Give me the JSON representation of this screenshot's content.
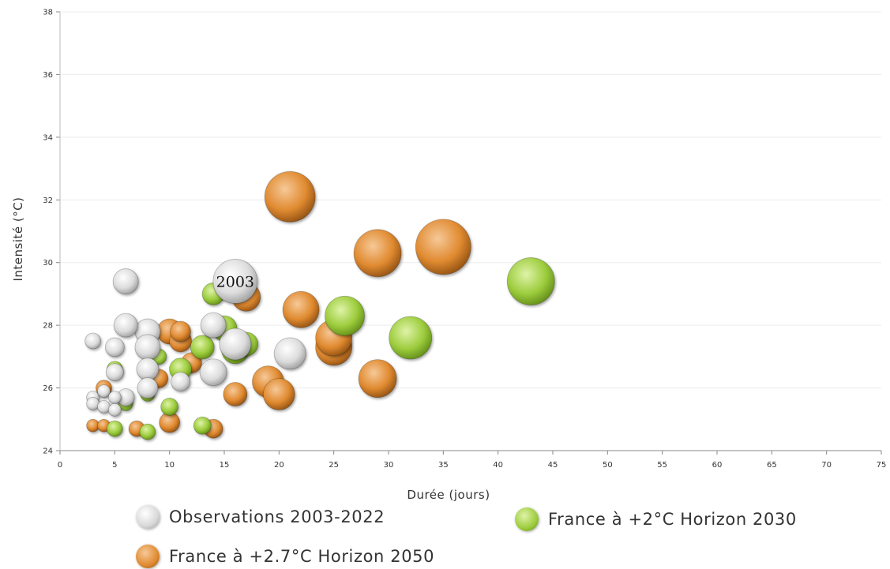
{
  "chart_data": {
    "type": "scatter",
    "xlabel": "Durée  (jours)",
    "ylabel": "Intensité  (°C)",
    "xlim": [
      0,
      75
    ],
    "ylim": [
      24,
      38
    ],
    "xticks": [
      0,
      5,
      10,
      15,
      20,
      25,
      30,
      35,
      40,
      45,
      50,
      55,
      60,
      65,
      70,
      75
    ],
    "yticks": [
      24,
      26,
      28,
      30,
      32,
      34,
      36,
      38
    ],
    "grid": "horizontal",
    "legend_position": "bottom",
    "annotation": {
      "text": "2003",
      "x": 16,
      "y": 29.4
    },
    "series": [
      {
        "name": "Observations 2003-2022",
        "color": "#dcdcdc",
        "points": [
          {
            "x": 3,
            "y": 27.5
          },
          {
            "x": 3,
            "y": 25.7
          },
          {
            "x": 3,
            "y": 25.5
          },
          {
            "x": 4,
            "y": 25.9
          },
          {
            "x": 4,
            "y": 25.4
          },
          {
            "x": 5,
            "y": 27.3
          },
          {
            "x": 5,
            "y": 26.5
          },
          {
            "x": 5,
            "y": 25.7
          },
          {
            "x": 5,
            "y": 25.3
          },
          {
            "x": 6,
            "y": 29.4
          },
          {
            "x": 6,
            "y": 25.7
          },
          {
            "x": 6,
            "y": 28.0
          },
          {
            "x": 8,
            "y": 27.8
          },
          {
            "x": 8,
            "y": 27.3
          },
          {
            "x": 8,
            "y": 26.6
          },
          {
            "x": 8,
            "y": 26.0
          },
          {
            "x": 11,
            "y": 26.2
          },
          {
            "x": 14,
            "y": 28.0
          },
          {
            "x": 14,
            "y": 26.5
          },
          {
            "x": 16,
            "y": 27.4
          },
          {
            "x": 16,
            "y": 29.4
          },
          {
            "x": 21,
            "y": 27.1
          }
        ],
        "sizes": [
          10,
          8,
          8,
          8,
          8,
          12,
          11,
          8,
          8,
          16,
          11,
          15,
          16,
          16,
          14,
          13,
          12,
          16,
          17,
          20,
          28,
          20
        ]
      },
      {
        "name": "France à +2°C Horizon 2030",
        "color": "#9ccc3c",
        "points": [
          {
            "x": 5,
            "y": 24.7
          },
          {
            "x": 5,
            "y": 26.6
          },
          {
            "x": 6,
            "y": 25.5
          },
          {
            "x": 8,
            "y": 24.6
          },
          {
            "x": 8,
            "y": 25.8
          },
          {
            "x": 9,
            "y": 27.0
          },
          {
            "x": 10,
            "y": 25.4
          },
          {
            "x": 11,
            "y": 26.6
          },
          {
            "x": 13,
            "y": 24.8
          },
          {
            "x": 13,
            "y": 27.3
          },
          {
            "x": 14,
            "y": 29.0
          },
          {
            "x": 15,
            "y": 27.9
          },
          {
            "x": 16,
            "y": 27.2
          },
          {
            "x": 17,
            "y": 27.4
          },
          {
            "x": 26,
            "y": 28.3
          },
          {
            "x": 32,
            "y": 27.6
          },
          {
            "x": 43,
            "y": 29.4
          }
        ],
        "sizes": [
          10,
          10,
          9,
          10,
          9,
          10,
          11,
          14,
          11,
          15,
          14,
          16,
          17,
          15,
          25,
          27,
          30
        ]
      },
      {
        "name": "France à +2.7°C Horizon 2050",
        "color": "#e08a30",
        "points": [
          {
            "x": 3,
            "y": 24.8
          },
          {
            "x": 4,
            "y": 24.8
          },
          {
            "x": 4,
            "y": 26.0
          },
          {
            "x": 7,
            "y": 24.7
          },
          {
            "x": 9,
            "y": 26.3
          },
          {
            "x": 10,
            "y": 24.9
          },
          {
            "x": 10,
            "y": 27.8
          },
          {
            "x": 11,
            "y": 27.8
          },
          {
            "x": 11,
            "y": 27.5
          },
          {
            "x": 12,
            "y": 26.8
          },
          {
            "x": 14,
            "y": 24.7
          },
          {
            "x": 16,
            "y": 25.8
          },
          {
            "x": 17,
            "y": 28.9
          },
          {
            "x": 19,
            "y": 26.2
          },
          {
            "x": 20,
            "y": 25.8
          },
          {
            "x": 22,
            "y": 28.5
          },
          {
            "x": 25,
            "y": 27.3
          },
          {
            "x": 25,
            "y": 27.6
          },
          {
            "x": 29,
            "y": 26.3
          },
          {
            "x": 29,
            "y": 30.3
          },
          {
            "x": 21,
            "y": 32.1
          },
          {
            "x": 35,
            "y": 30.5
          }
        ],
        "sizes": [
          8,
          8,
          10,
          10,
          12,
          13,
          16,
          13,
          14,
          13,
          12,
          15,
          18,
          20,
          20,
          23,
          23,
          23,
          24,
          30,
          32,
          35
        ]
      }
    ]
  }
}
